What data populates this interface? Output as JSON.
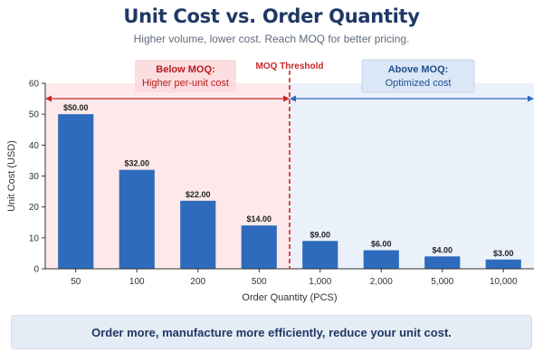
{
  "title": "Unit Cost vs. Order Quantity",
  "subtitle": "Higher volume, lower cost. Reach MOQ for better pricing.",
  "footer": "Order more, manufacture more efficiently, reduce your unit cost.",
  "colors": {
    "bar": "#2e6bbd",
    "threshold": "#c62828",
    "below_region": "#fde9ea",
    "above_region": "#eaf1fa",
    "title": "#1f3864"
  },
  "annotations": {
    "below": {
      "title": "Below MOQ:",
      "text": "Higher per-unit cost"
    },
    "above": {
      "title": "Above MOQ:",
      "text": "Optimized cost"
    },
    "threshold_label": "MOQ Threshold"
  },
  "chart_data": {
    "type": "bar",
    "categories": [
      "50",
      "100",
      "200",
      "500",
      "1,000",
      "2,000",
      "5,000",
      "10,000"
    ],
    "values": [
      50,
      32,
      22,
      14,
      9,
      6,
      4,
      3
    ],
    "value_labels": [
      "$50.00",
      "$32.00",
      "$22.00",
      "$14.00",
      "$9.00",
      "$6.00",
      "$4.00",
      "$3.00"
    ],
    "xlabel": "Order Quantity (PCS)",
    "ylabel": "Unit Cost (USD)",
    "ylim": [
      0,
      60
    ],
    "yticks": [
      0,
      10,
      20,
      30,
      40,
      50,
      60
    ],
    "threshold_between": [
      "500",
      "1,000"
    ],
    "grid": false
  }
}
